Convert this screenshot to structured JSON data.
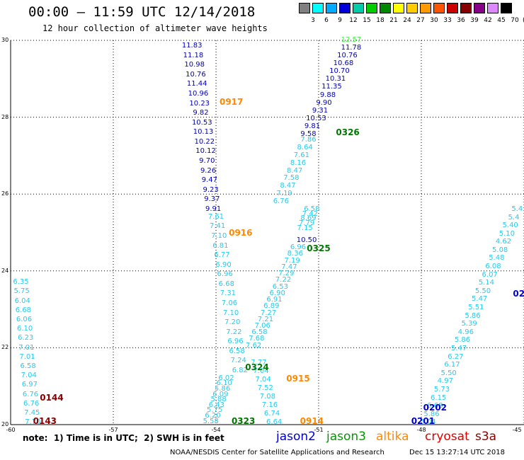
{
  "header": {
    "title": "00:00 – 11:59 UTC 12/14/2018",
    "subtitle": "12 hour collection of altimeter wave heights"
  },
  "legend": {
    "colors": [
      "#808080",
      "#00ffff",
      "#00aaff",
      "#0000dd",
      "#00ccaa",
      "#00cc00",
      "#008800",
      "#ffff00",
      "#ffcc00",
      "#ff9900",
      "#ff5500",
      "#cc0000",
      "#880000",
      "#880088",
      "#dd88ff",
      "#000000"
    ],
    "labels": [
      "3",
      "6",
      "9",
      "12",
      "15",
      "18",
      "21",
      "24",
      "27",
      "30",
      "33",
      "36",
      "39",
      "42",
      "45",
      "70"
    ],
    "unit": "(ft)"
  },
  "axes": {
    "y_ticks": [
      "30",
      "28",
      "26",
      "24",
      "22",
      "20"
    ],
    "x_ticks": [
      "-60",
      "-57",
      "-54",
      "-51",
      "-48",
      "-45"
    ]
  },
  "track_data": {
    "colors": {
      "jason2": "#0000cc",
      "jason3": "#007700",
      "altika": "#ff8800",
      "cryosat": "#dd0000",
      "s3a": "#880000",
      "swh_cyan": "#22ccee",
      "swh_blue": "#0000bb",
      "swh_green": "#44ee44"
    },
    "pass_labels": [
      {
        "text": "0917",
        "lon": -53.55,
        "lat": 28.4,
        "color": "altika"
      },
      {
        "text": "0916",
        "lon": -53.28,
        "lat": 25.0,
        "color": "altika"
      },
      {
        "text": "0915",
        "lon": -51.6,
        "lat": 21.2,
        "color": "altika"
      },
      {
        "text": "0914",
        "lon": -51.2,
        "lat": 20.1,
        "color": "altika"
      },
      {
        "text": "0326",
        "lon": -50.15,
        "lat": 27.6,
        "color": "jason3"
      },
      {
        "text": "0325",
        "lon": -51.0,
        "lat": 24.58,
        "color": "jason3"
      },
      {
        "text": "0324",
        "lon": -52.8,
        "lat": 21.5,
        "color": "jason3"
      },
      {
        "text": "0323",
        "lon": -53.2,
        "lat": 20.1,
        "color": "jason3"
      },
      {
        "text": "0144",
        "lon": -58.8,
        "lat": 20.7,
        "color": "s3a"
      },
      {
        "text": "0143",
        "lon": -59.0,
        "lat": 20.1,
        "color": "s3a"
      },
      {
        "text": "0202",
        "lon": -47.6,
        "lat": 20.45,
        "color": "jason2"
      },
      {
        "text": "0201",
        "lon": -47.95,
        "lat": 20.1,
        "color": "jason2"
      },
      {
        "text": "02",
        "lon": -45.15,
        "lat": 23.4,
        "color": "jason2"
      }
    ],
    "tracks": [
      {
        "name": "altika-0917",
        "segments": [
          {
            "color": "swh_blue",
            "start": [
              -54.7,
              29.85
            ],
            "end": [
              -54.08,
              25.6
            ],
            "values": [
              "11.83",
              "11.18",
              "10.98",
              "10.76",
              "11.44",
              "10.96",
              "10.23",
              "9.82",
              "10.53",
              "10.13",
              "10.22",
              "10.12",
              "9.70",
              "9.26",
              "9.47",
              "9.23",
              "9.37",
              "9.91"
            ]
          },
          {
            "color": "swh_cyan",
            "start": [
              -54.0,
              25.4
            ],
            "end": [
              -53.3,
              21.4
            ],
            "values": [
              "7.61",
              "7.41",
              "7.10",
              "6.81",
              "6.77",
              "6.90",
              "6.96",
              "6.68",
              "7.31",
              "7.06",
              "7.10",
              "7.20",
              "7.22",
              "6.96",
              "6.58",
              "7.24",
              "6.82"
            ]
          },
          {
            "color": "swh_cyan",
            "start": [
              -53.7,
              21.2
            ],
            "end": [
              -54.15,
              20.08
            ],
            "values": [
              "6.02",
              "6.10",
              "5.86",
              "6.09",
              "5.88",
              "6.43",
              "5.75",
              "6.20",
              "5.58"
            ]
          }
        ]
      },
      {
        "name": "jason3-0326",
        "segments": [
          {
            "color": "swh_green",
            "start": [
              -50.05,
              30.0
            ],
            "end": [
              -50.05,
              30.0
            ],
            "values": [
              "12.57"
            ]
          },
          {
            "color": "swh_blue",
            "start": [
              -50.05,
              29.8
            ],
            "end": [
              -51.3,
              27.55
            ],
            "values": [
              "11.78",
              "10.76",
              "10.68",
              "10.70",
              "10.31",
              "11.35",
              "9.88",
              "9.90",
              "9.31",
              "10.53",
              "9.81",
              "9.58"
            ]
          },
          {
            "color": "swh_cyan",
            "start": [
              -51.3,
              27.4
            ],
            "end": [
              -52.1,
              25.8
            ],
            "values": [
              "7.86",
              "8.64",
              "7.61",
              "8.16",
              "8.47",
              "7.58",
              "8.47",
              "7.19",
              "6.76"
            ]
          },
          {
            "color": "swh_cyan",
            "start": [
              -51.2,
              25.6
            ],
            "end": [
              -51.4,
              25.1
            ],
            "values": [
              "6.58",
              "7.42",
              "8.69",
              "7.79",
              "7.15"
            ]
          },
          {
            "color": "swh_blue",
            "start": [
              -51.35,
              24.78
            ],
            "end": [
              -51.35,
              24.78
            ],
            "values": [
              "10.50"
            ]
          },
          {
            "color": "swh_cyan",
            "start": [
              -51.6,
              24.6
            ],
            "end": [
              -52.9,
              22.05
            ],
            "values": [
              "6.96",
              "8.36",
              "7.19",
              "7.47",
              "7.29",
              "7.22",
              "6.53",
              "6.90",
              "6.91",
              "6.89",
              "7.27",
              "7.21",
              "7.06",
              "6.58",
              "7.68",
              "7.62"
            ]
          },
          {
            "color": "swh_cyan",
            "start": [
              -52.75,
              21.6
            ],
            "end": [
              -52.3,
              20.05
            ],
            "values": [
              "7.77",
              "7.04",
              "7.04",
              "7.52",
              "7.08",
              "7.16",
              "6.74",
              "6.64"
            ]
          }
        ]
      },
      {
        "name": "s3a-0144",
        "segments": [
          {
            "color": "swh_cyan",
            "start": [
              -59.7,
              23.7
            ],
            "end": [
              -59.35,
              20.05
            ],
            "values": [
              "6.35",
              "5.75",
              "6.04",
              "6.68",
              "6.06",
              "6.10",
              "6.23",
              "7.01",
              "7.01",
              "6.58",
              "7.04",
              "6.97",
              "6.76",
              "6.76",
              "7.45",
              "7.70"
            ]
          }
        ]
      },
      {
        "name": "jason2-0202",
        "segments": [
          {
            "color": "swh_cyan",
            "start": [
              -47.8,
              20.05
            ],
            "end": [
              -45.2,
              25.6
            ],
            "values": [
              "5.04",
              "5.86",
              "6.68",
              "6.15",
              "5.73",
              "4.97",
              "5.50",
              "6.17",
              "6.27",
              "5.47",
              "5.86",
              "4.96",
              "5.39",
              "5.86",
              "5.51",
              "5.47",
              "5.50",
              "5.14",
              "6.07",
              "6.08",
              "5.48",
              "5.08",
              "4.62",
              "5.10",
              "5.40",
              "5.4",
              "5.4"
            ]
          }
        ]
      }
    ]
  },
  "notes": {
    "note": "note:  1) Time is in UTC;  2) SWH is in feet",
    "satellites": [
      {
        "name": "jason2",
        "color": "#0000cc"
      },
      {
        "name": "jason3",
        "color": "#009900"
      },
      {
        "name": "altika",
        "color": "#ff8800"
      },
      {
        "name": "cryosat",
        "color": "#dd0000"
      },
      {
        "name": "s3a",
        "color": "#880000"
      }
    ],
    "credit": "NOAA/NESDIS Center for Satellite Applications and Research",
    "timestamp": "Dec 15 13:27:14 UTC 2018"
  }
}
